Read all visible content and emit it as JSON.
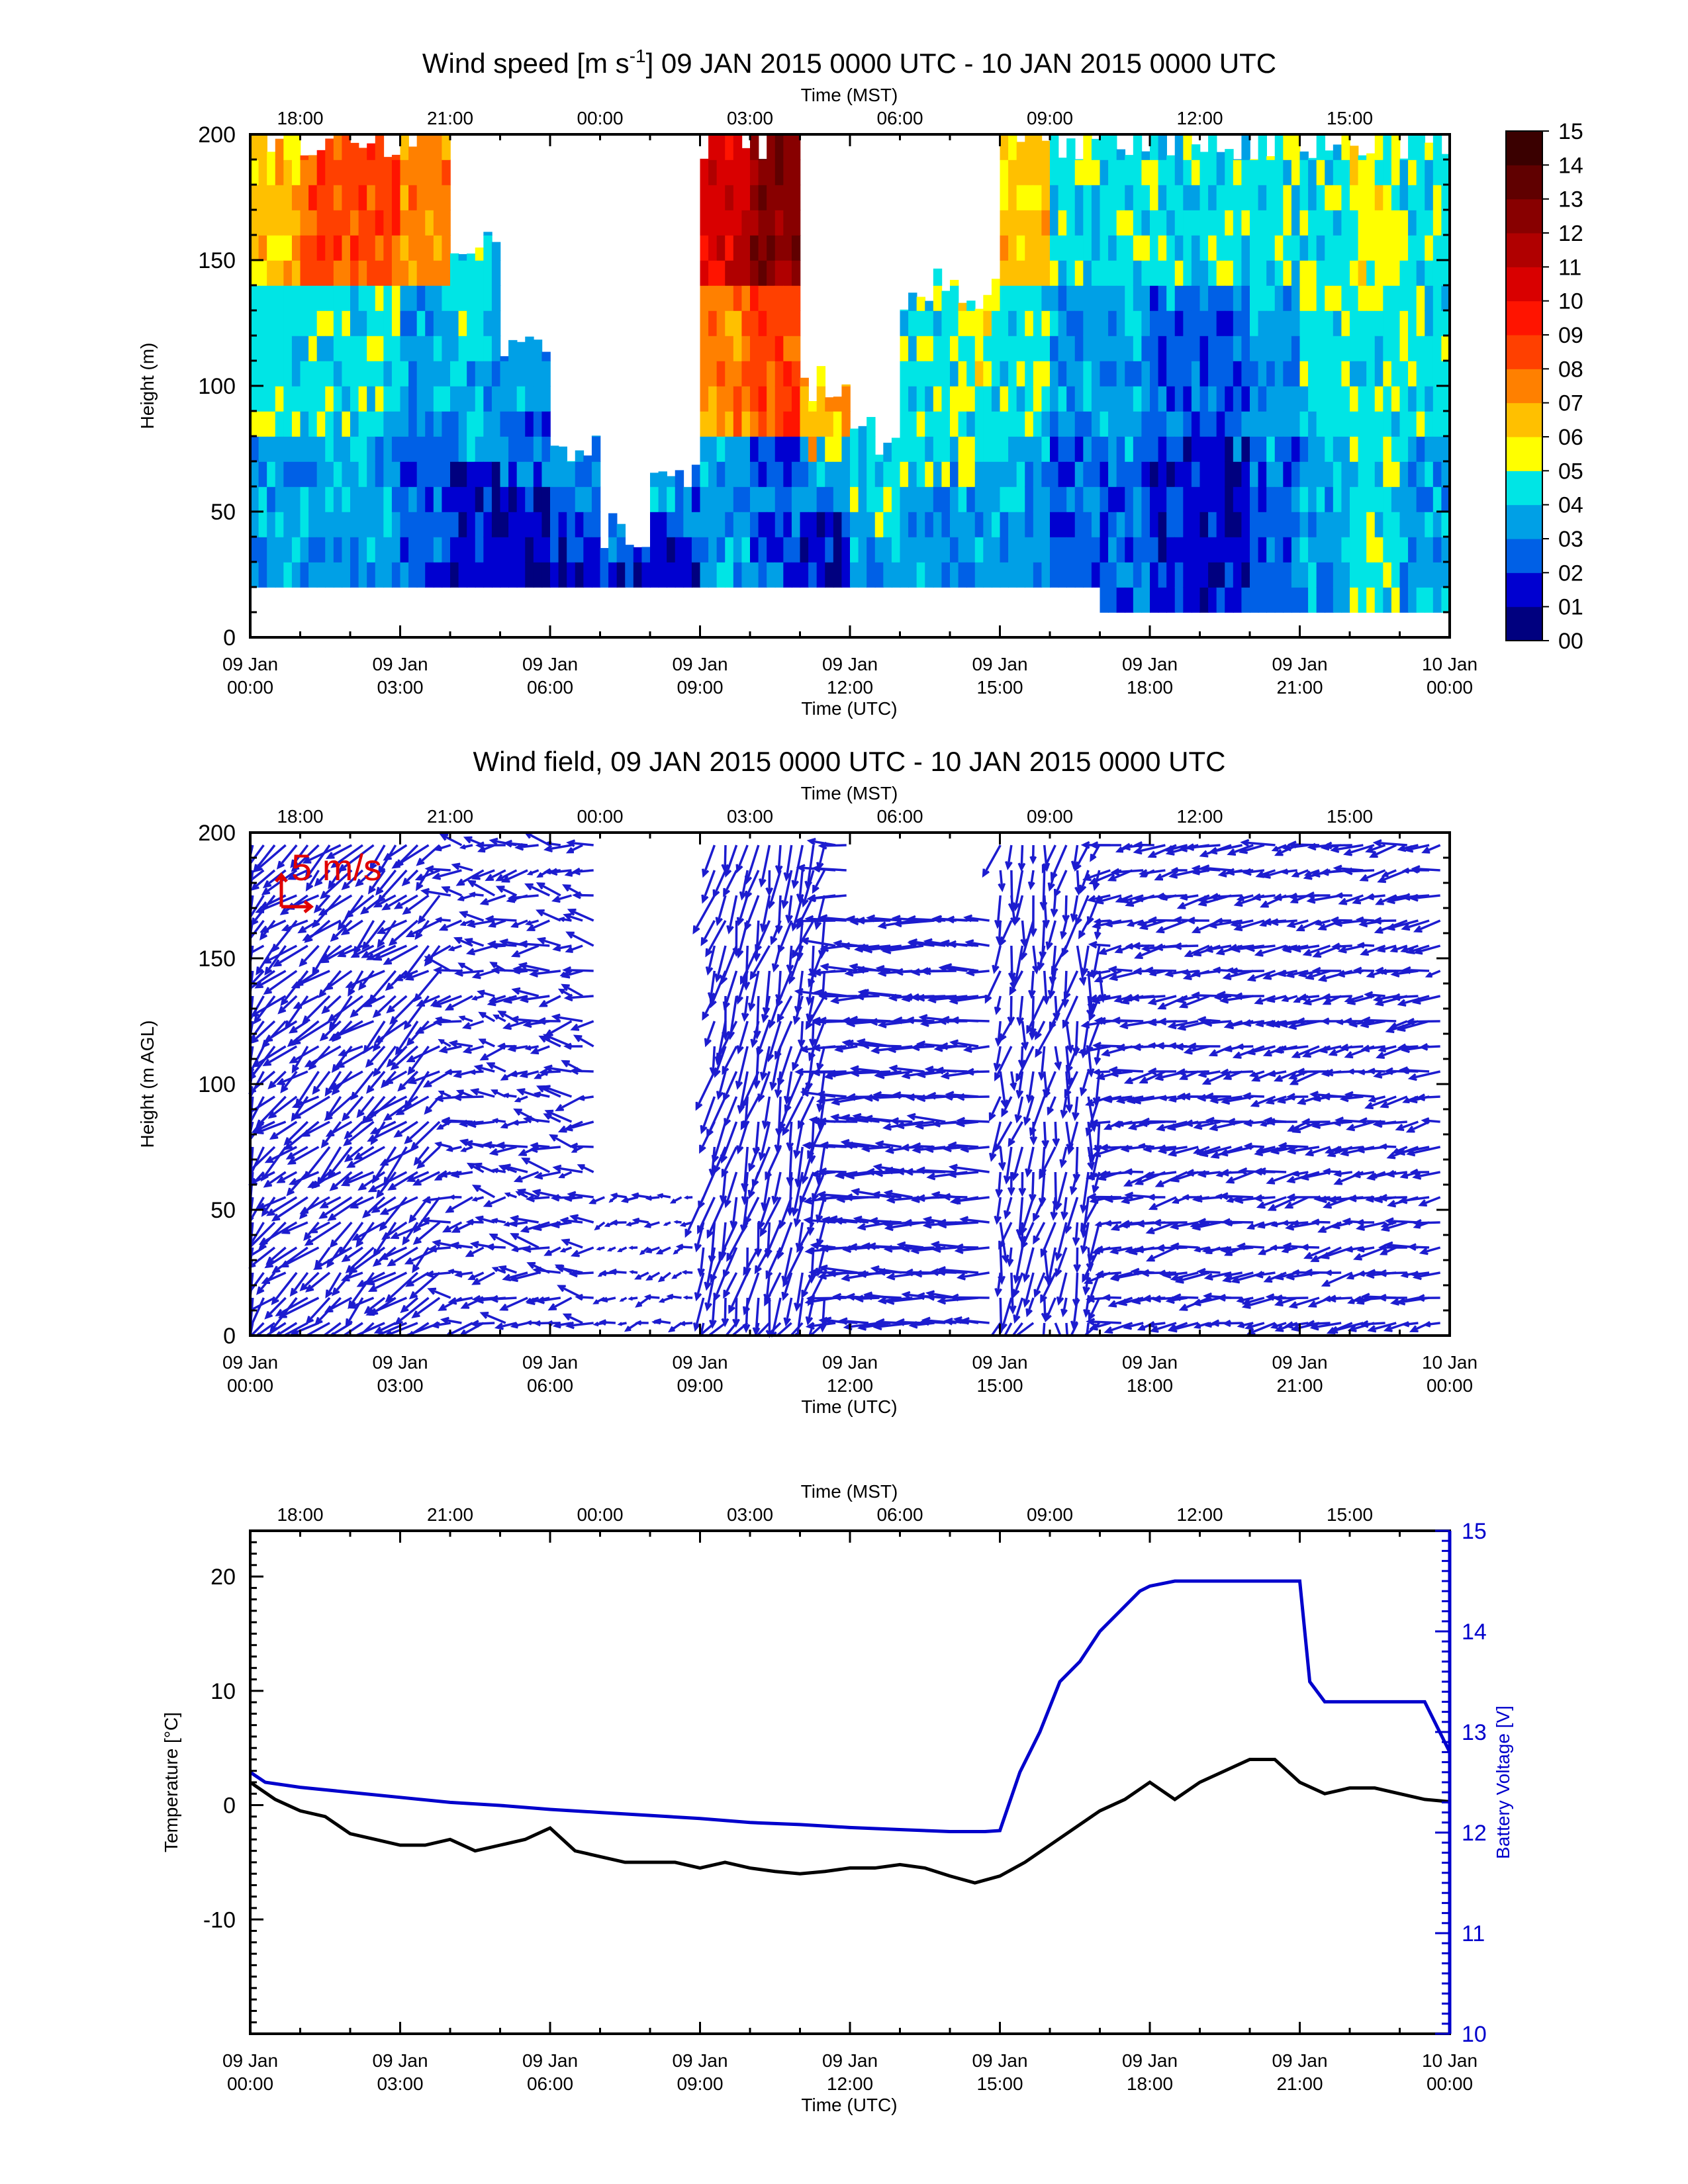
{
  "chart_data": [
    {
      "type": "heatmap",
      "title_main": "Wind speed [m s",
      "title_sup": "-1",
      "title_rest": "] 09 JAN 2015 0000 UTC - 10 JAN 2015 0000 UTC",
      "ylabel": "Height (m)",
      "xlabel_bottom": "Time (UTC)",
      "xlabel_top": "Time (MST)",
      "xlim_hours": [
        0,
        24
      ],
      "ylim": [
        0,
        200
      ],
      "yticks": [
        "0",
        "50",
        "100",
        "150",
        "200"
      ],
      "colorbar": {
        "labels": [
          "00",
          "01",
          "02",
          "03",
          "04",
          "05",
          "06",
          "07",
          "08",
          "09",
          "10",
          "11",
          "12",
          "13",
          "14",
          "15"
        ],
        "colors": [
          "#00007f",
          "#0000d0",
          "#0060e6",
          "#00a0e6",
          "#00e5e5",
          "#ffff00",
          "#ffc000",
          "#ff8000",
          "#ff4000",
          "#ff1400",
          "#d90000",
          "#b00000",
          "#880000",
          "#600000",
          "#3a0000"
        ]
      },
      "columns": [
        {
          "t": 0.5,
          "bottom": 20,
          "top": 200,
          "low": 3,
          "mid": 4,
          "high": 6
        },
        {
          "t": 1.5,
          "bottom": 20,
          "top": 200,
          "low": 3,
          "mid": 4,
          "high": 8
        },
        {
          "t": 2.5,
          "bottom": 20,
          "top": 200,
          "low": 3,
          "mid": 4,
          "high": 8
        },
        {
          "t": 3.5,
          "bottom": 20,
          "top": 200,
          "low": 2,
          "mid": 3,
          "high": 7
        },
        {
          "t": 4.5,
          "bottom": 20,
          "top": 160,
          "low": 1,
          "mid": 3,
          "high": 4
        },
        {
          "t": 5.5,
          "bottom": 20,
          "top": 110,
          "low": 1,
          "mid": 2,
          "high": 3
        },
        {
          "t": 6.5,
          "bottom": 20,
          "top": 80,
          "low": 1,
          "mid": 2,
          "high": 3
        },
        {
          "t": 7.5,
          "bottom": 20,
          "top": 40,
          "low": 1,
          "mid": 2,
          "high": 3
        },
        {
          "t": 8.5,
          "bottom": 20,
          "top": 60,
          "low": 1,
          "mid": 2,
          "high": 3
        },
        {
          "t": 9.5,
          "bottom": 20,
          "top": 200,
          "low": 3,
          "mid": 7,
          "high": 10
        },
        {
          "t": 10.5,
          "bottom": 20,
          "top": 200,
          "low": 2,
          "mid": 8,
          "high": 12
        },
        {
          "t": 11.5,
          "bottom": 20,
          "top": 100,
          "low": 1,
          "mid": 3,
          "high": 6
        },
        {
          "t": 12.5,
          "bottom": 20,
          "top": 80,
          "low": 3,
          "mid": 4,
          "high": 4
        },
        {
          "t": 13.5,
          "bottom": 20,
          "top": 140,
          "low": 3,
          "mid": 4,
          "high": 4
        },
        {
          "t": 14.5,
          "bottom": 20,
          "top": 140,
          "low": 3,
          "mid": 4,
          "high": 5
        },
        {
          "t": 15.5,
          "bottom": 20,
          "top": 200,
          "low": 3,
          "mid": 4,
          "high": 6
        },
        {
          "t": 16.5,
          "bottom": 20,
          "top": 200,
          "low": 2,
          "mid": 3,
          "high": 4
        },
        {
          "t": 17.5,
          "bottom": 10,
          "top": 200,
          "low": 2,
          "mid": 3,
          "high": 4
        },
        {
          "t": 18.5,
          "bottom": 10,
          "top": 200,
          "low": 1,
          "mid": 2,
          "high": 4
        },
        {
          "t": 19.5,
          "bottom": 10,
          "top": 200,
          "low": 1,
          "mid": 2,
          "high": 4
        },
        {
          "t": 20.5,
          "bottom": 10,
          "top": 200,
          "low": 2,
          "mid": 3,
          "high": 4
        },
        {
          "t": 21.5,
          "bottom": 10,
          "top": 200,
          "low": 3,
          "mid": 4,
          "high": 4
        },
        {
          "t": 22.5,
          "bottom": 10,
          "top": 200,
          "low": 4,
          "mid": 4,
          "high": 5
        },
        {
          "t": 23.5,
          "bottom": 10,
          "top": 200,
          "low": 3,
          "mid": 4,
          "high": 4
        }
      ]
    },
    {
      "type": "quiver",
      "title": "Wind field, 09 JAN 2015 0000 UTC - 10 JAN 2015 0000 UTC",
      "ylabel": "Height (m AGL)",
      "xlabel_bottom": "Time (UTC)",
      "xlabel_top": "Time (MST)",
      "scale_label": "5 m/s",
      "xlim_hours": [
        0,
        24
      ],
      "ylim": [
        0,
        200
      ],
      "yticks": [
        "0",
        "50",
        "100",
        "150",
        "200"
      ],
      "arrow_color": "#1c1ccf",
      "scale_color": "#e00000",
      "gaps": [
        [
          7.0,
          9.2,
          60,
          200
        ],
        [
          12.0,
          14.8,
          170,
          200
        ]
      ]
    },
    {
      "type": "line",
      "ylabel_left": "Temperature [°C]",
      "ylabel_right": "Battery Voltage [V]",
      "xlabel_bottom": "Time (UTC)",
      "xlabel_top": "Time (MST)",
      "xlim_hours": [
        0,
        24
      ],
      "ylim_left": [
        -20,
        24
      ],
      "ylim_right": [
        10,
        15
      ],
      "yticks_left": [
        -10,
        0,
        10,
        20
      ],
      "yticks_right": [
        10,
        11,
        12,
        13,
        14,
        15
      ],
      "right_axis_color": "#0000cc",
      "series": [
        {
          "color": "#000000",
          "x": [
            0,
            0.5,
            1,
            1.5,
            2,
            2.5,
            3,
            3.5,
            4,
            4.5,
            5,
            5.5,
            6,
            6.5,
            7,
            7.5,
            8,
            8.5,
            9,
            9.5,
            10,
            10.5,
            11,
            11.5,
            12,
            12.5,
            13,
            13.5,
            14,
            14.5,
            15,
            15.5,
            16,
            16.5,
            17,
            17.5,
            18,
            18.5,
            19,
            19.5,
            20,
            20.5,
            21,
            21.5,
            22,
            22.5,
            23,
            23.5,
            24
          ],
          "values": [
            2,
            0.5,
            -0.5,
            -1,
            -2.5,
            -3,
            -3.5,
            -3.5,
            -3,
            -4,
            -3.5,
            -3,
            -2,
            -4,
            -4.5,
            -5,
            -5,
            -5,
            -5.5,
            -5,
            -5.5,
            -5.8,
            -6,
            -5.8,
            -5.5,
            -5.5,
            -5.2,
            -5.5,
            -6.2,
            -6.8,
            -6.2,
            -5,
            -3.5,
            -2,
            -0.5,
            0.5,
            2,
            0.5,
            2,
            3,
            4,
            4,
            2,
            1,
            1.5,
            1.5,
            1,
            0.5,
            0.3
          ]
        },
        {
          "color": "#0000cc",
          "axis": "right",
          "x": [
            0,
            0.3,
            1,
            2,
            3,
            4,
            5,
            6,
            7,
            8,
            9,
            10,
            11,
            12,
            13,
            14,
            14.7,
            15,
            15.4,
            15.8,
            16.2,
            16.6,
            17,
            17.4,
            17.8,
            18,
            18.5,
            19,
            20,
            21,
            21.2,
            21.5,
            22,
            23,
            23.5,
            24
          ],
          "values": [
            12.6,
            12.5,
            12.45,
            12.4,
            12.35,
            12.3,
            12.27,
            12.23,
            12.2,
            12.17,
            12.14,
            12.1,
            12.08,
            12.05,
            12.03,
            12.01,
            12.01,
            12.02,
            12.6,
            13.0,
            13.5,
            13.7,
            14.0,
            14.2,
            14.4,
            14.45,
            14.5,
            14.5,
            14.5,
            14.5,
            13.5,
            13.3,
            13.3,
            13.3,
            13.3,
            12.8
          ]
        }
      ]
    }
  ],
  "time_axis": {
    "utc_labels": [
      [
        "09 Jan",
        "00:00"
      ],
      [
        "09 Jan",
        "03:00"
      ],
      [
        "09 Jan",
        "06:00"
      ],
      [
        "09 Jan",
        "09:00"
      ],
      [
        "09 Jan",
        "12:00"
      ],
      [
        "09 Jan",
        "15:00"
      ],
      [
        "09 Jan",
        "18:00"
      ],
      [
        "09 Jan",
        "21:00"
      ],
      [
        "10 Jan",
        "00:00"
      ]
    ],
    "mst_labels": [
      "18:00",
      "21:00",
      "00:00",
      "03:00",
      "06:00",
      "09:00",
      "12:00",
      "15:00"
    ],
    "mst_first_hour_offset": 1
  }
}
